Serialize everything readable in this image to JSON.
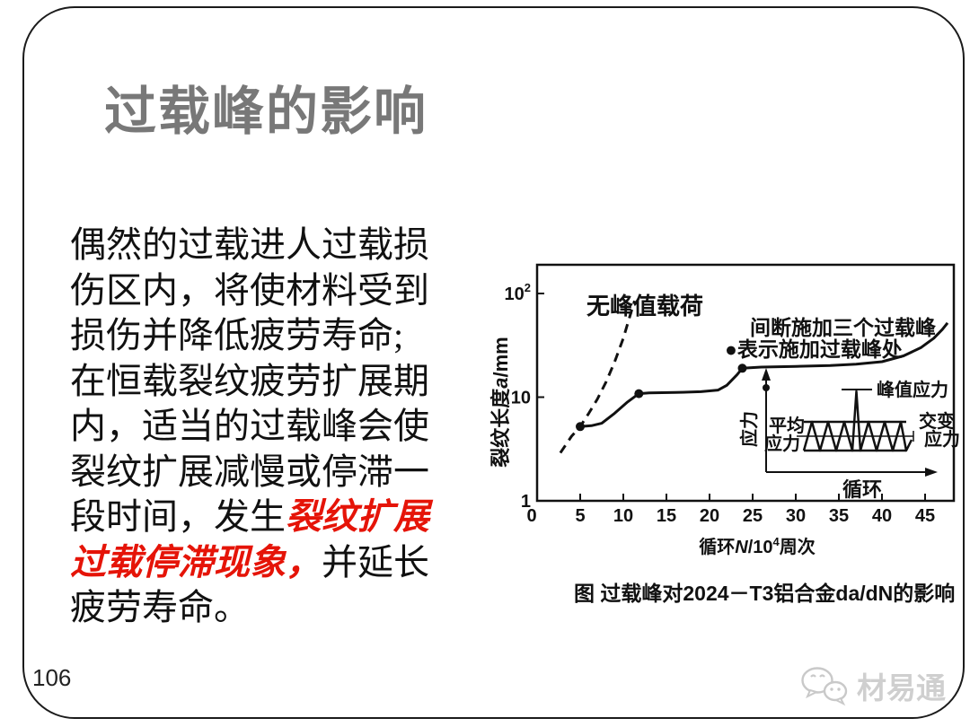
{
  "slide": {
    "title": "过载峰的影响",
    "page_number": "106",
    "watermark_text": "材易通"
  },
  "colors": {
    "accent_red": "#e51408",
    "title_gray": "#787878",
    "watermark_gray": "#cfcfcf",
    "ink": "#111111"
  },
  "body": {
    "lines": [
      [
        {
          "text": "偶然的过载进人过载损"
        }
      ],
      [
        {
          "text": "伤区内，将使材料受到"
        }
      ],
      [
        {
          "text": "损伤并降低疲劳寿命;"
        }
      ],
      [
        {
          "text": "在恒载裂纹疲劳扩展期"
        }
      ],
      [
        {
          "text": "内，适当的过载峰会使"
        }
      ],
      [
        {
          "text": "裂纹扩展减慢或停滞一"
        }
      ],
      [
        {
          "text": "段时间，发生"
        },
        {
          "text": "裂纹扩展",
          "red": true
        }
      ],
      [
        {
          "text": "过载停滞现象，",
          "red": true
        },
        {
          "text": "并延长"
        }
      ],
      [
        {
          "text": "疲劳寿命。"
        }
      ]
    ]
  },
  "figure": {
    "caption": "图 过载峰对2024－T3铝合金da/dN的影响"
  },
  "chart_data": {
    "type": "line",
    "title": "过载峰对2024-T3铝合金da/dN的影响",
    "xlabel_parts": {
      "pre": "循环",
      "var": "N",
      "mid": "/10",
      "sup": "4",
      "post": "周次"
    },
    "ylabel_parts": {
      "pre": "裂纹长度",
      "var": "a",
      "post": "/mm"
    },
    "x_ticks": [
      0,
      5,
      10,
      15,
      20,
      25,
      30,
      35,
      40,
      45
    ],
    "y_ticks": [
      {
        "value": 1,
        "base": "1"
      },
      {
        "value": 10,
        "base": "10"
      },
      {
        "value": 100,
        "base": "10",
        "sup": "2"
      }
    ],
    "y_scale": "log",
    "xlim": [
      0,
      48.5
    ],
    "ylim": [
      1,
      190
    ],
    "x_unit": "10^4 周次",
    "y_unit": "mm",
    "series": [
      {
        "name": "无峰值载荷",
        "style": "dashed",
        "points": [
          [
            2.7,
            2.9
          ],
          [
            4,
            4.2
          ],
          [
            5,
            5.2
          ],
          [
            6,
            7
          ],
          [
            7,
            9.6
          ],
          [
            8,
            14
          ],
          [
            9,
            22
          ],
          [
            10,
            37
          ],
          [
            10.7,
            58
          ],
          [
            11.3,
            85
          ]
        ]
      },
      {
        "name": "间断施加三个过载峰",
        "style": "solid",
        "points": [
          [
            5,
            5.2
          ],
          [
            6.3,
            5.3
          ],
          [
            7.5,
            5.6
          ],
          [
            9,
            7
          ],
          [
            10.5,
            9
          ],
          [
            11.8,
            10.8
          ],
          [
            13,
            11
          ],
          [
            16,
            11.1
          ],
          [
            19,
            11.3
          ],
          [
            21,
            11.7
          ],
          [
            22,
            13
          ],
          [
            23.2,
            16.5
          ],
          [
            23.8,
            19
          ],
          [
            26,
            19.5
          ],
          [
            30,
            19.8
          ],
          [
            34,
            20.2
          ],
          [
            37,
            20.8
          ],
          [
            40,
            22
          ],
          [
            42.5,
            25
          ],
          [
            44.5,
            30
          ],
          [
            46,
            37
          ],
          [
            47,
            45
          ],
          [
            47.6,
            52
          ]
        ]
      }
    ],
    "overload_points": [
      [
        5,
        5.2
      ],
      [
        11.8,
        10.8
      ],
      [
        23.8,
        19
      ]
    ],
    "annotations": {
      "dashed_label": "无峰值载荷",
      "note_line1": "间断施加三个过载峰",
      "note_line2": "●表示施加过载峰处"
    },
    "inset": {
      "ylabel": "应力",
      "xlabel": "循环",
      "peak_label": "峰值应力",
      "mean_label_line1": "平均",
      "mean_label_line2": "应力",
      "alt_label_line1": "交变",
      "alt_label_line2": "应力"
    }
  }
}
